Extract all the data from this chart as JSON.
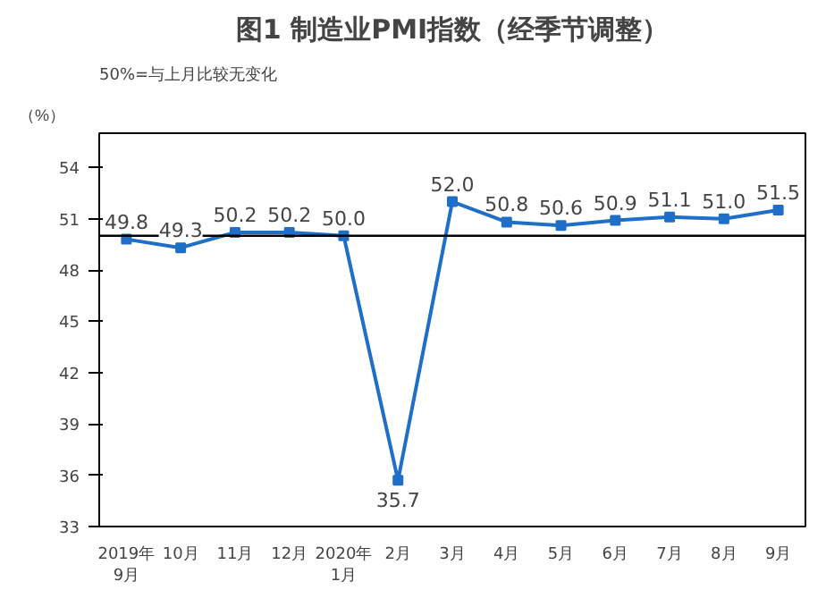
{
  "chart_data": {
    "type": "line",
    "title": "图1 制造业PMI指数（经季节调整）",
    "ylabel": "（%）",
    "annotations": [
      "50%=与上月比较无变化"
    ],
    "categories": [
      "2019年\n9月",
      "10月",
      "11月",
      "12月",
      "2020年\n1月",
      "2月",
      "3月",
      "4月",
      "5月",
      "6月",
      "7月",
      "8月",
      "9月"
    ],
    "series": [
      {
        "color": "#1f6fc8",
        "values": [
          49.8,
          49.3,
          50.2,
          50.2,
          50.0,
          35.7,
          52.0,
          50.8,
          50.6,
          50.9,
          51.1,
          51.0,
          51.5
        ]
      }
    ],
    "ylim": [
      33,
      56
    ],
    "yticks": [
      33,
      36,
      39,
      42,
      45,
      48,
      51,
      54
    ],
    "ref_lines": [
      {
        "axis": "y",
        "value": 50,
        "color": "#000000"
      }
    ],
    "value_labels": [
      "49.8",
      "49.3",
      "50.2",
      "50.2",
      "50.0",
      "35.7",
      "52.0",
      "50.8",
      "50.6",
      "50.9",
      "51.1",
      "51.0",
      "51.5"
    ],
    "marker": "square",
    "line_style": "solid",
    "grid": false
  }
}
